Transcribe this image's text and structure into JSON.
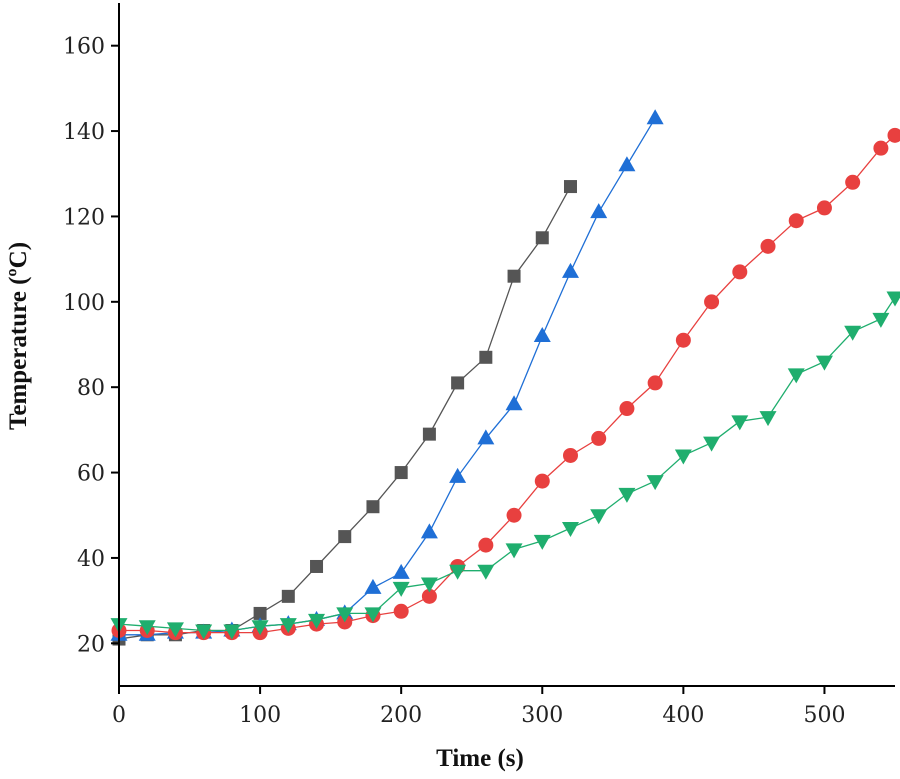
{
  "chart_data": {
    "type": "line",
    "title": "",
    "xlabel": "Time (s)",
    "ylabel": "Temperature (ºC)",
    "xlim": [
      0,
      550
    ],
    "ylim": [
      10,
      170
    ],
    "xticks": [
      0,
      100,
      200,
      300,
      400,
      500
    ],
    "yticks": [
      20,
      40,
      60,
      80,
      100,
      120,
      140,
      160
    ],
    "xticks_labels": [
      "0",
      "100",
      "200",
      "300",
      "400",
      "500"
    ],
    "yticks_labels": [
      "20",
      "40",
      "60",
      "80",
      "100",
      "120",
      "140",
      "160"
    ],
    "grid": false,
    "legend": "none",
    "series": [
      {
        "name": "black-squares",
        "color": "#555555",
        "marker": "square",
        "x": [
          0,
          20,
          40,
          60,
          80,
          100,
          120,
          140,
          160,
          180,
          200,
          220,
          240,
          260,
          280,
          300,
          320
        ],
        "y": [
          21,
          22,
          22,
          23,
          23,
          27,
          31,
          38,
          45,
          52,
          60,
          69,
          81,
          87,
          106,
          115,
          127
        ]
      },
      {
        "name": "blue-triangles-up",
        "color": "#1f6fd6",
        "marker": "triangle-up",
        "x": [
          0,
          20,
          40,
          60,
          80,
          100,
          120,
          140,
          160,
          180,
          200,
          220,
          240,
          260,
          280,
          300,
          320,
          340,
          360,
          380
        ],
        "y": [
          22,
          22,
          22.5,
          22.5,
          23,
          24,
          24.5,
          25.5,
          27,
          33,
          36.5,
          46,
          59,
          68,
          76,
          92,
          107,
          121,
          132,
          143
        ]
      },
      {
        "name": "red-circles",
        "color": "#e8403f",
        "marker": "circle",
        "x": [
          0,
          20,
          40,
          60,
          80,
          100,
          120,
          140,
          160,
          180,
          200,
          220,
          240,
          260,
          280,
          300,
          320,
          340,
          360,
          380,
          400,
          420,
          440,
          460,
          480,
          500,
          520,
          540,
          550
        ],
        "y": [
          23,
          23,
          22.5,
          22.5,
          22.5,
          22.5,
          23.5,
          24.5,
          25,
          26.5,
          27.5,
          31,
          38,
          43,
          50,
          58,
          64,
          68,
          75,
          81,
          91,
          100,
          107,
          113,
          119,
          122,
          128,
          136,
          139
        ]
      },
      {
        "name": "green-triangles-down",
        "color": "#1fae6e",
        "marker": "triangle-down",
        "x": [
          0,
          20,
          40,
          60,
          80,
          100,
          120,
          140,
          160,
          180,
          200,
          220,
          240,
          260,
          280,
          300,
          320,
          340,
          360,
          380,
          400,
          420,
          440,
          460,
          480,
          500,
          520,
          540,
          550
        ],
        "y": [
          24.5,
          24,
          23.5,
          23,
          23,
          24,
          24.5,
          25.5,
          27,
          27,
          33,
          34,
          37,
          37,
          42,
          44,
          47,
          50,
          55,
          58,
          64,
          67,
          72,
          73,
          83,
          86,
          93,
          96,
          101
        ]
      }
    ]
  }
}
